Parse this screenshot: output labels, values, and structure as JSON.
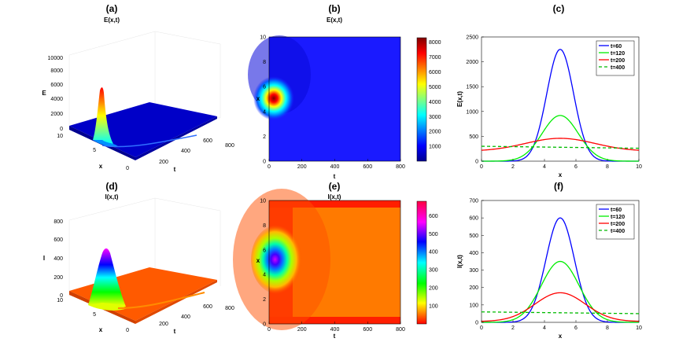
{
  "chart_data": [
    {
      "panel": "(a)",
      "type": "surface3d",
      "title": "E(x,t)",
      "xlabel": "x",
      "ylabel": "t",
      "zlabel": "E",
      "x_ticks": [
        "0",
        "5",
        "10"
      ],
      "t_ticks": [
        "200",
        "400",
        "600",
        "800"
      ],
      "z_ticks": [
        "0",
        "2000",
        "4000",
        "6000",
        "8000",
        "10000"
      ],
      "zlim": [
        0,
        10000
      ],
      "peak": {
        "x": 5,
        "t": 60,
        "value": 5800
      },
      "colormap": "jet"
    },
    {
      "panel": "(b)",
      "type": "heatmap",
      "title": "E(x,t)",
      "xlabel": "t",
      "ylabel": "x",
      "x_ticks": [
        "0",
        "200",
        "400",
        "600",
        "800"
      ],
      "y_ticks": [
        "0",
        "2",
        "4",
        "6",
        "8",
        "10"
      ],
      "colorbar_ticks": [
        "1000",
        "2000",
        "3000",
        "4000",
        "5000",
        "6000",
        "7000",
        "8000"
      ],
      "colorbar_range": [
        0,
        8300
      ],
      "colormap": "jet",
      "hotspot": {
        "t": 20,
        "x": 5.0
      }
    },
    {
      "panel": "(c)",
      "type": "line",
      "title": "",
      "xlabel": "x",
      "ylabel": "E(x,t)",
      "xlim": [
        0,
        10
      ],
      "ylim": [
        0,
        2500
      ],
      "x_ticks": [
        "0",
        "2",
        "4",
        "6",
        "8",
        "10"
      ],
      "y_ticks": [
        "0",
        "500",
        "1000",
        "1500",
        "2000",
        "2500"
      ],
      "legend": "top-right",
      "series": [
        {
          "name": "t=60",
          "color": "#0000ff",
          "dash": "none",
          "amp": 2250,
          "sigma": 0.85,
          "base": 0
        },
        {
          "name": "t=120",
          "color": "#00ee00",
          "dash": "none",
          "amp": 920,
          "sigma": 1.15,
          "base": 0
        },
        {
          "name": "t=200",
          "color": "#ff0000",
          "dash": "none",
          "amp": 260,
          "sigma": 2.2,
          "base": 200
        },
        {
          "name": "t=400",
          "color": "#00bb00",
          "dash": "4,3",
          "amp": 0,
          "sigma": 1,
          "base": 300,
          "slope": -4
        }
      ]
    },
    {
      "panel": "(d)",
      "type": "surface3d",
      "title": "I(x,t)",
      "xlabel": "x",
      "ylabel": "t",
      "zlabel": "I",
      "x_ticks": [
        "0",
        "5",
        "10"
      ],
      "t_ticks": [
        "200",
        "400",
        "600",
        "800"
      ],
      "z_ticks": [
        "0",
        "200",
        "400",
        "600",
        "800"
      ],
      "zlim": [
        0,
        800
      ],
      "peak": {
        "x": 5,
        "t": 60,
        "value": 620
      },
      "colormap": "hsv"
    },
    {
      "panel": "(e)",
      "type": "heatmap",
      "title": "I(x,t)",
      "xlabel": "t",
      "ylabel": "x",
      "x_ticks": [
        "0",
        "200",
        "400",
        "600",
        "800"
      ],
      "y_ticks": [
        "0",
        "2",
        "4",
        "6",
        "8",
        "10"
      ],
      "colorbar_ticks": [
        "100",
        "200",
        "300",
        "400",
        "500",
        "600"
      ],
      "colorbar_range": [
        0,
        680
      ],
      "colormap": "hsv",
      "hotspot": {
        "t": 50,
        "x": 5.0
      }
    },
    {
      "panel": "(f)",
      "type": "line",
      "title": "",
      "xlabel": "x",
      "ylabel": "I(x,t)",
      "xlim": [
        0,
        10
      ],
      "ylim": [
        0,
        700
      ],
      "x_ticks": [
        "0",
        "2",
        "4",
        "6",
        "8",
        "10"
      ],
      "y_ticks": [
        "0",
        "100",
        "200",
        "300",
        "400",
        "500",
        "600",
        "700"
      ],
      "legend": "top-right",
      "series": [
        {
          "name": "t=60",
          "color": "#0000ff",
          "dash": "none",
          "amp": 600,
          "sigma": 0.9,
          "base": 0
        },
        {
          "name": "t=120",
          "color": "#00ee00",
          "dash": "none",
          "amp": 350,
          "sigma": 1.2,
          "base": 0
        },
        {
          "name": "t=200",
          "color": "#ff0000",
          "dash": "none",
          "amp": 165,
          "sigma": 1.6,
          "base": 5
        },
        {
          "name": "t=400",
          "color": "#00bb00",
          "dash": "4,3",
          "amp": 0,
          "sigma": 1,
          "base": 60,
          "slope": -1
        }
      ]
    }
  ]
}
